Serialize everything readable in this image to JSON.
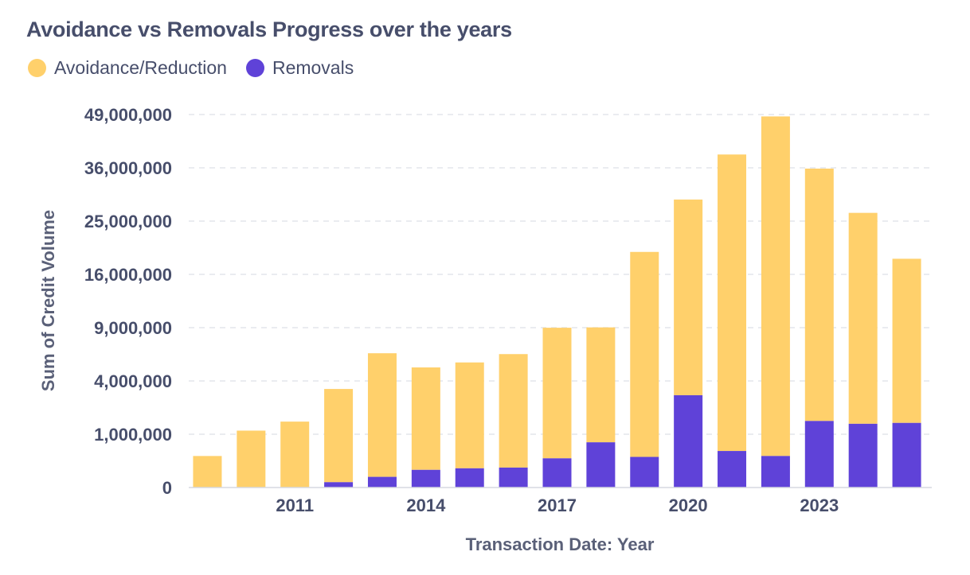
{
  "chart_data": {
    "type": "bar",
    "stacked": true,
    "title": "Avoidance vs Removals Progress over the years",
    "xlabel": "Transaction Date: Year",
    "ylabel": "Sum of Credit Volume",
    "y_scale": "sqrt",
    "yticks": [
      0,
      1000000,
      4000000,
      9000000,
      16000000,
      25000000,
      36000000,
      49000000
    ],
    "ytick_labels": [
      "0",
      "1,000,000",
      "4,000,000",
      "9,000,000",
      "16,000,000",
      "25,000,000",
      "36,000,000",
      "49,000,000"
    ],
    "ylim": [
      0,
      49000000
    ],
    "categories": [
      2009,
      2010,
      2011,
      2012,
      2013,
      2014,
      2015,
      2016,
      2017,
      2018,
      2019,
      2020,
      2021,
      2022,
      2023,
      2024,
      2025
    ],
    "xtick_labels": [
      {
        "category": 2011,
        "label": "2011"
      },
      {
        "category": 2014,
        "label": "2014"
      },
      {
        "category": 2017,
        "label": "2017"
      },
      {
        "category": 2020,
        "label": "2020"
      },
      {
        "category": 2023,
        "label": "2023"
      }
    ],
    "legend_position": "top-left",
    "series": [
      {
        "name": "Removals",
        "color": "#5f42d8",
        "values": [
          0,
          0,
          0,
          10000,
          40000,
          110000,
          130000,
          140000,
          300000,
          720000,
          330000,
          3000000,
          470000,
          350000,
          1560000,
          1430000,
          1470000
        ]
      },
      {
        "name": "Avoidance/Reduction",
        "color": "#ffd06b",
        "values": [
          350000,
          1140000,
          1530000,
          3410000,
          6310000,
          4970000,
          5380000,
          6130000,
          8690000,
          8310000,
          19220000,
          26210000,
          38590000,
          48150000,
          34260000,
          25140000,
          16960000
        ]
      }
    ],
    "legend": [
      {
        "name": "Avoidance/Reduction",
        "color": "#ffd06b"
      },
      {
        "name": "Removals",
        "color": "#5f42d8"
      }
    ]
  }
}
